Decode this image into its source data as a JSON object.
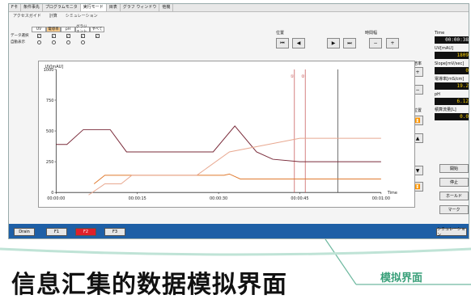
{
  "tabs": [
    "F卡",
    "条件事先",
    "プログラムモニタ",
    "実行モード",
    "目表",
    "グラフ ウィンドウ",
    "他機"
  ],
  "toolbar": [
    "アクセスガイド",
    "計算",
    "シミュレーション"
  ],
  "checks": {
    "row1_label": "データ選択",
    "row2_label": "自動表示",
    "headers": [
      "UV",
      "電導率",
      "pH",
      "グラジエント",
      "すべて"
    ]
  },
  "position_label": "位置",
  "scale_label": "時間幅",
  "nav_buttons": [
    "⏮",
    "◀",
    "▶",
    "⏭"
  ],
  "zoom_buttons": [
    "−",
    "+"
  ],
  "v_scale_label": "倍率",
  "v_pos_label": "位置",
  "chart_data": {
    "type": "line",
    "ylabel": "UV[mAU]",
    "xlabel": "Time",
    "yticks": [
      "1000",
      "750",
      "500",
      "250",
      "0"
    ],
    "xticks": [
      "00:00:00",
      "00:00:15",
      "00:00:30",
      "00:00:45",
      "00:01:00"
    ],
    "xlim": [
      0,
      60
    ],
    "ylim": [
      0,
      1000
    ],
    "marker_labels": [
      "①",
      "②"
    ],
    "series": [
      {
        "color": "#7a2b3a",
        "points": [
          [
            0,
            390
          ],
          [
            2,
            390
          ],
          [
            5,
            510
          ],
          [
            10,
            510
          ],
          [
            13,
            330
          ],
          [
            26,
            330
          ],
          [
            29,
            330
          ],
          [
            33,
            540
          ],
          [
            37,
            330
          ],
          [
            40,
            270
          ],
          [
            45,
            250
          ],
          [
            60,
            250
          ]
        ]
      },
      {
        "color": "#e07a2f",
        "points": [
          [
            7,
            70
          ],
          [
            9,
            140
          ],
          [
            31,
            140
          ],
          [
            32,
            150
          ],
          [
            34,
            110
          ],
          [
            60,
            110
          ]
        ]
      },
      {
        "color": "#e8a890",
        "points": [
          [
            6,
            -20
          ],
          [
            9,
            70
          ],
          [
            12,
            70
          ],
          [
            14,
            140
          ],
          [
            26,
            140
          ],
          [
            32,
            330
          ],
          [
            45,
            440
          ],
          [
            60,
            440
          ]
        ]
      }
    ],
    "markers": [
      44,
      46,
      52
    ]
  },
  "side": {
    "time_label": "Time",
    "time_value": "00:00:38",
    "uv_label": "UV[mAU]",
    "uv_value": "1809",
    "slope_label": "Slope[mV/sec]",
    "slope_value": "0",
    "cond_label": "電導率[mS/cm]",
    "cond_value": "19.2",
    "ph_label": "pH",
    "ph_value": "6.12",
    "acc_label": "積算流量[L]",
    "acc_value": "0.0"
  },
  "right_buttons": [
    "開始",
    "停止",
    "ホールド",
    "マーク"
  ],
  "bottom": {
    "buttons": [
      "Drain",
      "F1",
      "F2",
      "F3"
    ],
    "right_button": "シミュレーション"
  },
  "caption": "信息汇集的数据模拟界面",
  "sim_label": "模拟界面",
  "colors": {
    "accent": "#1e5fa6",
    "alert": "#e0202a",
    "sim": "#3aa07a"
  }
}
